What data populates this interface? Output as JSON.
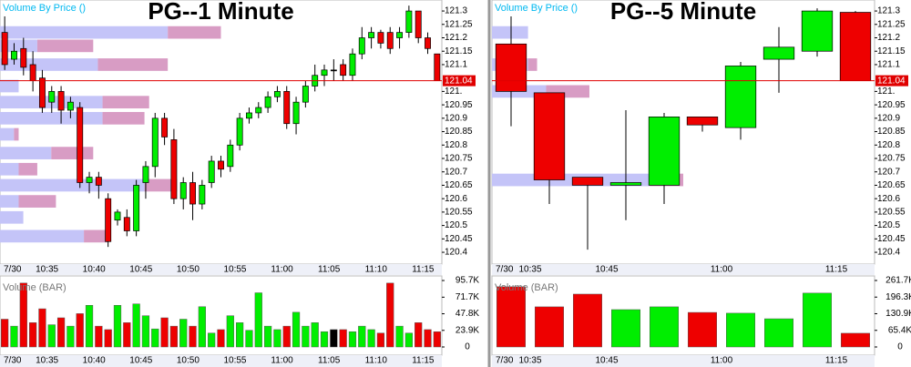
{
  "chart_data": [
    {
      "type": "candlestick",
      "title": "PG--1 Minute",
      "indicator_label": "Volume By Price ()",
      "volume_label": "Volume (BAR)",
      "categories": [
        "7/30",
        null,
        null,
        null,
        null,
        "10:35",
        null,
        null,
        null,
        null,
        "10:40",
        null,
        null,
        null,
        null,
        "10:45",
        null,
        null,
        null,
        null,
        "10:50",
        null,
        null,
        null,
        null,
        "10:55",
        null,
        null,
        null,
        null,
        "11:00",
        null,
        null,
        null,
        null,
        "11:05",
        null,
        null,
        null,
        null,
        "11:10",
        null,
        null,
        null,
        null,
        "11:15",
        null
      ],
      "open": [
        121.22,
        121.12,
        121.16,
        121.1,
        121.05,
        120.96,
        121.0,
        120.93,
        120.94,
        120.66,
        120.68,
        120.6,
        120.52,
        120.53,
        120.48,
        120.66,
        120.72,
        120.9,
        120.82,
        120.6,
        120.66,
        120.58,
        120.66,
        120.74,
        120.72,
        120.8,
        120.9,
        120.92,
        120.94,
        120.98,
        121.0,
        120.88,
        120.96,
        121.02,
        121.06,
        121.08,
        121.1,
        121.06,
        121.14,
        121.2,
        121.22,
        121.22,
        121.2,
        121.22,
        121.3,
        121.2,
        121.14
      ],
      "high": [
        121.28,
        121.18,
        121.2,
        121.15,
        121.08,
        121.02,
        121.02,
        120.98,
        120.96,
        120.7,
        120.7,
        120.62,
        120.56,
        120.56,
        120.67,
        120.74,
        120.92,
        120.92,
        120.86,
        120.68,
        120.7,
        120.67,
        120.76,
        120.76,
        120.82,
        120.92,
        120.94,
        120.96,
        121.0,
        121.02,
        121.02,
        120.98,
        121.04,
        121.1,
        121.1,
        121.12,
        121.12,
        121.16,
        121.24,
        121.24,
        121.23,
        121.24,
        121.24,
        121.32,
        121.3,
        121.22,
        121.14
      ],
      "low": [
        121.08,
        121.1,
        121.06,
        121.0,
        120.92,
        120.92,
        120.88,
        120.9,
        120.64,
        120.62,
        120.6,
        120.42,
        120.5,
        120.46,
        120.46,
        120.6,
        120.68,
        120.8,
        120.58,
        120.56,
        120.52,
        120.56,
        120.64,
        120.68,
        120.7,
        120.78,
        120.88,
        120.9,
        120.92,
        120.96,
        120.86,
        120.84,
        120.94,
        121.0,
        121.02,
        121.04,
        121.04,
        121.04,
        121.12,
        121.16,
        121.16,
        121.14,
        121.16,
        121.2,
        121.18,
        121.14,
        121.04
      ],
      "close": [
        121.1,
        121.15,
        121.09,
        121.04,
        120.94,
        121.0,
        120.93,
        120.96,
        120.66,
        120.68,
        120.65,
        120.44,
        120.55,
        120.48,
        120.65,
        120.72,
        120.9,
        120.83,
        120.6,
        120.66,
        120.58,
        120.65,
        120.74,
        120.71,
        120.8,
        120.9,
        120.92,
        120.94,
        120.98,
        121.0,
        120.88,
        120.96,
        121.02,
        121.06,
        121.08,
        121.08,
        121.06,
        121.14,
        121.2,
        121.22,
        121.18,
        121.16,
        121.22,
        121.3,
        121.2,
        121.16,
        121.04
      ],
      "volume": [
        40000,
        30000,
        92000,
        35000,
        55000,
        32000,
        42000,
        30000,
        48000,
        60000,
        30000,
        25000,
        60000,
        35000,
        62000,
        45000,
        26000,
        42000,
        30000,
        40000,
        30000,
        58000,
        20000,
        25000,
        45000,
        35000,
        24000,
        78000,
        30000,
        25000,
        30000,
        50000,
        30000,
        35000,
        22000,
        25000,
        25000,
        22000,
        30000,
        25000,
        20000,
        92000,
        30000,
        20000,
        35000,
        25000,
        22000
      ],
      "ylim": [
        120.356,
        121.341
      ],
      "yticks": [
        121.3,
        121.25,
        121.2,
        121.15,
        121.1,
        {
          "value": 121,
          "label": "121."
        },
        120.95,
        120.9,
        120.85,
        120.8,
        120.75,
        120.7,
        120.65,
        120.6,
        120.55,
        120.5,
        120.45,
        120.4
      ],
      "volume_ylim": [
        0,
        102300
      ],
      "volume_yticks": [
        {
          "value": 95700,
          "label": "95.7K"
        },
        {
          "value": 71700,
          "label": "71.7K"
        },
        {
          "value": 47800,
          "label": "47.8K"
        },
        {
          "value": 23900,
          "label": "23.9K"
        },
        0
      ],
      "last_price": {
        "value": 121.04,
        "label": "121.04"
      },
      "volume_by_price": {
        "levels": [
          121.22,
          121.17,
          121.1,
          121.02,
          120.96,
          120.9,
          120.84,
          120.77,
          120.71,
          120.65,
          120.59,
          120.53,
          120.46
        ],
        "up": [
          180,
          40,
          105,
          20,
          110,
          110,
          15,
          55,
          20,
          155,
          20,
          25,
          90
        ],
        "down": [
          57,
          60,
          75,
          0,
          50,
          45,
          5,
          45,
          20,
          35,
          40,
          0,
          25
        ]
      },
      "colors": {
        "up": "#00ee00",
        "down": "#ee0000",
        "flat": "#000000",
        "vbp_up": "#c4c4f8",
        "vbp_down": "#d89cc4",
        "title": "#c8c8f0",
        "last_price": "#e00000"
      }
    },
    {
      "type": "candlestick",
      "title": "PG--5 Minute",
      "indicator_label": "Volume By Price ()",
      "volume_label": "Volume (BAR)",
      "categories": [
        "7/30",
        "10:35",
        null,
        "10:45",
        null,
        null,
        "11:00",
        null,
        null,
        "11:15"
      ],
      "open": [
        121.177,
        120.995,
        120.68,
        120.65,
        120.65,
        120.905,
        120.865,
        121.12,
        121.15,
        121.295
      ],
      "high": [
        121.28,
        120.995,
        120.68,
        120.93,
        120.92,
        120.905,
        121.11,
        121.24,
        121.31,
        121.3
      ],
      "low": [
        120.87,
        120.58,
        120.41,
        120.52,
        120.58,
        120.85,
        120.82,
        120.995,
        121.13,
        121.04
      ],
      "close": [
        121.0,
        120.67,
        120.65,
        120.66,
        120.905,
        120.875,
        121.095,
        121.165,
        121.3,
        121.04
      ],
      "volume": [
        237000,
        158000,
        208000,
        147000,
        158000,
        136000,
        133000,
        111000,
        212000,
        54000
      ],
      "ylim": [
        120.356,
        121.341
      ],
      "yticks": [
        121.3,
        121.25,
        121.2,
        121.15,
        121.1,
        {
          "value": 121,
          "label": "121."
        },
        120.95,
        120.9,
        120.85,
        120.8,
        120.75,
        120.7,
        120.65,
        120.6,
        120.55,
        120.5,
        120.45,
        120.4
      ],
      "volume_ylim": [
        0,
        279600
      ],
      "volume_yticks": [
        {
          "value": 261700,
          "label": "261.7K"
        },
        {
          "value": 196300,
          "label": "196.3K"
        },
        {
          "value": 130900,
          "label": "130.9K"
        },
        {
          "value": 65400,
          "label": "65.4K"
        },
        0
      ],
      "last_price": {
        "value": 121.04,
        "label": "121.04"
      },
      "volume_by_price": {
        "levels": [
          121.22,
          121.1,
          121.0,
          120.67
        ],
        "up": [
          40,
          40,
          60,
          175
        ],
        "down": [
          0,
          10,
          48,
          37
        ]
      },
      "colors": {
        "up": "#00ee00",
        "down": "#ee0000",
        "flat": "#000000",
        "vbp_up": "#c4c4f8",
        "vbp_down": "#d89cc4",
        "title": "#c8c8f0",
        "last_price": "#e00000"
      }
    }
  ]
}
